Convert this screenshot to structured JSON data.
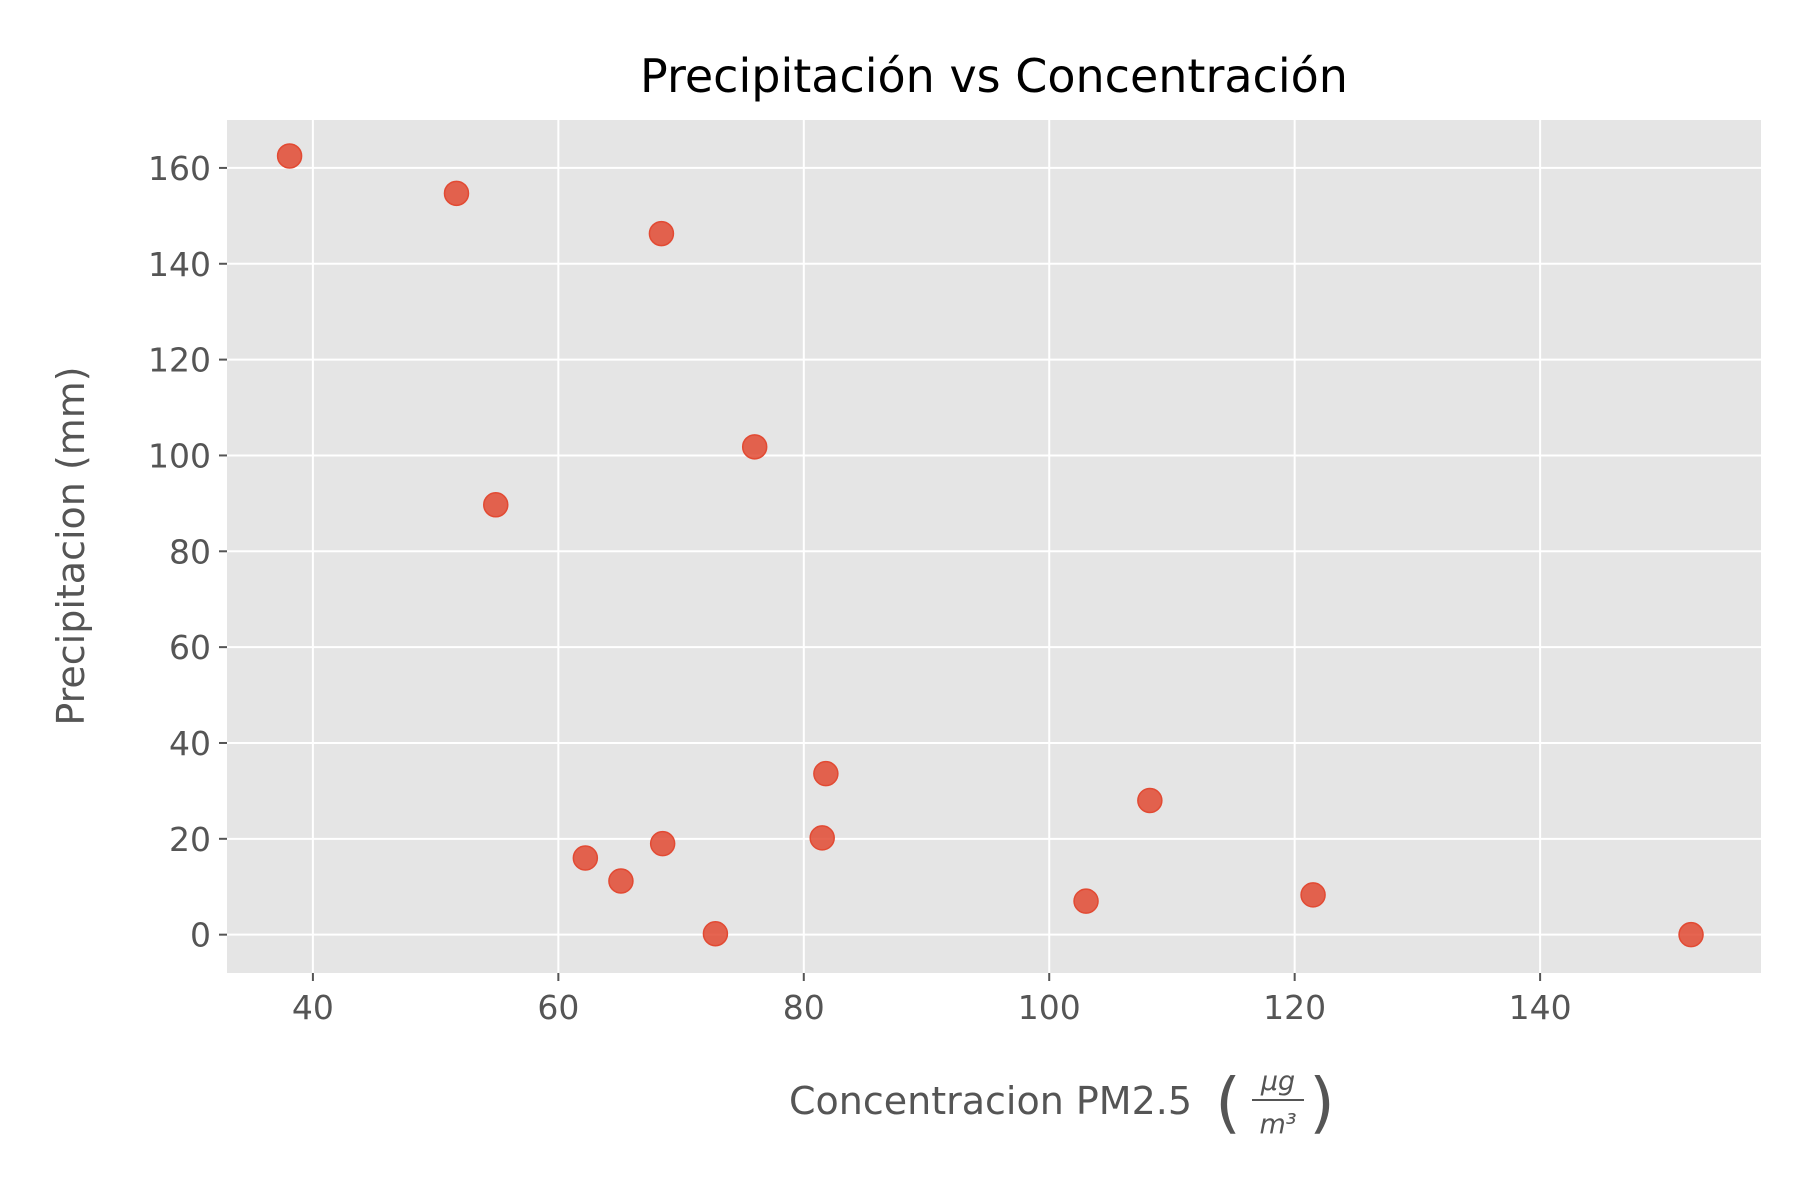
{
  "colors": {
    "plot_background": "#E5E5E5",
    "grid": "#FFFFFF",
    "marker": "#E24A33",
    "tick_text": "#555555",
    "title_text": "#000000"
  },
  "chart_data": {
    "type": "scatter",
    "title": "Precipitación vs Concentración",
    "xlabel": "Concentracion PM2.5",
    "xlabel_unit": {
      "numerator": "μg",
      "denominator": "m³"
    },
    "ylabel": "Precipitacion (mm)",
    "xlim": [
      33,
      158
    ],
    "ylim": [
      -8,
      170
    ],
    "xticks": [
      40,
      60,
      80,
      100,
      120,
      140
    ],
    "yticks": [
      0,
      20,
      40,
      60,
      80,
      100,
      120,
      140,
      160
    ],
    "grid": true,
    "points": [
      {
        "x": 38.1,
        "y": 162.5
      },
      {
        "x": 51.7,
        "y": 154.7
      },
      {
        "x": 68.4,
        "y": 146.3
      },
      {
        "x": 76.0,
        "y": 101.8
      },
      {
        "x": 54.9,
        "y": 89.7
      },
      {
        "x": 81.8,
        "y": 33.6
      },
      {
        "x": 108.2,
        "y": 28.0
      },
      {
        "x": 81.5,
        "y": 20.2
      },
      {
        "x": 68.5,
        "y": 19.0
      },
      {
        "x": 62.2,
        "y": 16.0
      },
      {
        "x": 65.1,
        "y": 11.2
      },
      {
        "x": 121.5,
        "y": 8.3
      },
      {
        "x": 103.0,
        "y": 7.0
      },
      {
        "x": 72.8,
        "y": 0.2
      },
      {
        "x": 152.3,
        "y": 0.0
      }
    ]
  }
}
